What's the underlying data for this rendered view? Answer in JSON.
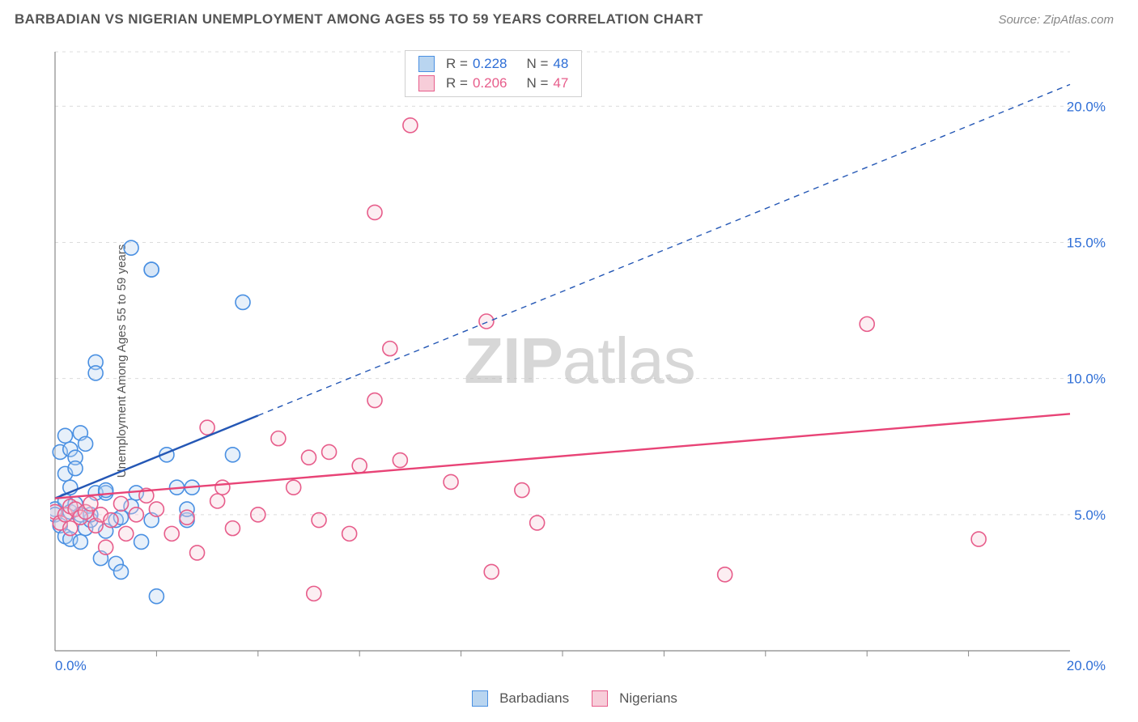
{
  "header": {
    "title": "BARBADIAN VS NIGERIAN UNEMPLOYMENT AMONG AGES 55 TO 59 YEARS CORRELATION CHART",
    "source": "Source: ZipAtlas.com"
  },
  "y_axis_label": "Unemployment Among Ages 55 to 59 years",
  "watermark": {
    "bold": "ZIP",
    "light": "atlas"
  },
  "legend_top": {
    "rows": [
      {
        "color_fill": "#b9d5f0",
        "color_stroke": "#4a90e2",
        "r_label": "R =",
        "r_value": "0.228",
        "r_color": "#2e6ed6",
        "n_label": "N =",
        "n_value": "48",
        "n_color": "#2e6ed6"
      },
      {
        "color_fill": "#f7cdd9",
        "color_stroke": "#e75d8b",
        "r_label": "R =",
        "r_value": "0.206",
        "r_color": "#e75d8b",
        "n_label": "N =",
        "n_value": "47",
        "n_color": "#e75d8b"
      }
    ]
  },
  "legend_bottom": {
    "items": [
      {
        "color_fill": "#b9d5f0",
        "color_stroke": "#4a90e2",
        "label": "Barbadians"
      },
      {
        "color_fill": "#f7cdd9",
        "color_stroke": "#e75d8b",
        "label": "Nigerians"
      }
    ]
  },
  "chart": {
    "type": "scatter",
    "xlim": [
      0,
      20
    ],
    "ylim": [
      0,
      22
    ],
    "background_color": "#ffffff",
    "grid_color": "#dcdcdc",
    "axis_color": "#888888",
    "y_ticks": [
      {
        "v": 5,
        "label": "5.0%",
        "color": "#2e6ed6"
      },
      {
        "v": 10,
        "label": "10.0%",
        "color": "#2e6ed6"
      },
      {
        "v": 15,
        "label": "15.0%",
        "color": "#2e6ed6"
      },
      {
        "v": 20,
        "label": "20.0%",
        "color": "#2e6ed6"
      }
    ],
    "x_ticks": [
      {
        "v": 0,
        "label": "0.0%",
        "color": "#2e6ed6"
      },
      {
        "v": 20,
        "label": "20.0%",
        "color": "#2e6ed6"
      }
    ],
    "x_tick_minor": [
      2,
      4,
      6,
      8,
      10,
      12,
      14,
      16,
      18
    ],
    "marker_radius": 9,
    "marker_stroke_width": 1.6,
    "marker_fill_opacity": 0.35,
    "series": [
      {
        "name": "Barbadians",
        "fill": "#b9d5f0",
        "stroke": "#4a90e2",
        "trend": {
          "solid_to_x": 4.0,
          "y0": 5.6,
          "slope": 0.76,
          "color": "#2457b5",
          "width": 2.4
        },
        "points": [
          [
            0.0,
            5.2
          ],
          [
            0.0,
            5.0
          ],
          [
            0.1,
            4.6
          ],
          [
            0.1,
            7.3
          ],
          [
            0.2,
            6.5
          ],
          [
            0.2,
            4.2
          ],
          [
            0.2,
            5.5
          ],
          [
            0.2,
            7.9
          ],
          [
            0.3,
            5.1
          ],
          [
            0.3,
            6.0
          ],
          [
            0.3,
            7.4
          ],
          [
            0.3,
            4.1
          ],
          [
            0.4,
            7.1
          ],
          [
            0.4,
            5.4
          ],
          [
            0.4,
            6.7
          ],
          [
            0.5,
            8.0
          ],
          [
            0.5,
            5.0
          ],
          [
            0.5,
            4.0
          ],
          [
            0.6,
            7.6
          ],
          [
            0.6,
            4.5
          ],
          [
            0.7,
            4.8
          ],
          [
            0.7,
            5.0
          ],
          [
            0.8,
            5.8
          ],
          [
            0.8,
            10.6
          ],
          [
            0.8,
            10.2
          ],
          [
            0.9,
            3.4
          ],
          [
            1.0,
            4.4
          ],
          [
            1.0,
            5.8
          ],
          [
            1.0,
            5.9
          ],
          [
            1.2,
            4.8
          ],
          [
            1.2,
            3.2
          ],
          [
            1.3,
            2.9
          ],
          [
            1.3,
            4.9
          ],
          [
            1.5,
            5.3
          ],
          [
            1.5,
            14.8
          ],
          [
            1.6,
            5.8
          ],
          [
            1.7,
            4.0
          ],
          [
            1.9,
            4.8
          ],
          [
            1.9,
            14.0
          ],
          [
            1.9,
            14.0
          ],
          [
            2.0,
            2.0
          ],
          [
            2.2,
            7.2
          ],
          [
            2.4,
            6.0
          ],
          [
            2.6,
            4.8
          ],
          [
            2.6,
            5.2
          ],
          [
            2.7,
            6.0
          ],
          [
            3.5,
            7.2
          ],
          [
            3.7,
            12.8
          ]
        ]
      },
      {
        "name": "Nigerians",
        "fill": "#f7cdd9",
        "stroke": "#e75d8b",
        "trend": {
          "solid_to_x": 20.0,
          "y0": 5.6,
          "slope": 0.155,
          "color": "#e84376",
          "width": 2.4
        },
        "points": [
          [
            0.0,
            5.1
          ],
          [
            0.1,
            4.7
          ],
          [
            0.2,
            5.0
          ],
          [
            0.3,
            5.3
          ],
          [
            0.3,
            4.5
          ],
          [
            0.4,
            5.2
          ],
          [
            0.5,
            4.9
          ],
          [
            0.6,
            5.1
          ],
          [
            0.7,
            5.4
          ],
          [
            0.8,
            4.6
          ],
          [
            0.9,
            5.0
          ],
          [
            1.0,
            3.8
          ],
          [
            1.1,
            4.8
          ],
          [
            1.3,
            5.4
          ],
          [
            1.4,
            4.3
          ],
          [
            1.6,
            5.0
          ],
          [
            1.8,
            5.7
          ],
          [
            2.0,
            5.2
          ],
          [
            2.3,
            4.3
          ],
          [
            2.6,
            4.9
          ],
          [
            2.8,
            3.6
          ],
          [
            3.0,
            8.2
          ],
          [
            3.2,
            5.5
          ],
          [
            3.3,
            6.0
          ],
          [
            3.5,
            4.5
          ],
          [
            4.0,
            5.0
          ],
          [
            4.4,
            7.8
          ],
          [
            4.7,
            6.0
          ],
          [
            5.0,
            7.1
          ],
          [
            5.1,
            2.1
          ],
          [
            5.2,
            4.8
          ],
          [
            5.4,
            7.3
          ],
          [
            5.8,
            4.3
          ],
          [
            6.0,
            6.8
          ],
          [
            6.3,
            9.2
          ],
          [
            6.3,
            16.1
          ],
          [
            6.6,
            11.1
          ],
          [
            6.8,
            7.0
          ],
          [
            7.0,
            19.3
          ],
          [
            7.8,
            6.2
          ],
          [
            8.5,
            12.1
          ],
          [
            9.2,
            5.9
          ],
          [
            8.6,
            2.9
          ],
          [
            9.5,
            4.7
          ],
          [
            13.2,
            2.8
          ],
          [
            16.0,
            12.0
          ],
          [
            18.2,
            4.1
          ]
        ]
      }
    ]
  }
}
